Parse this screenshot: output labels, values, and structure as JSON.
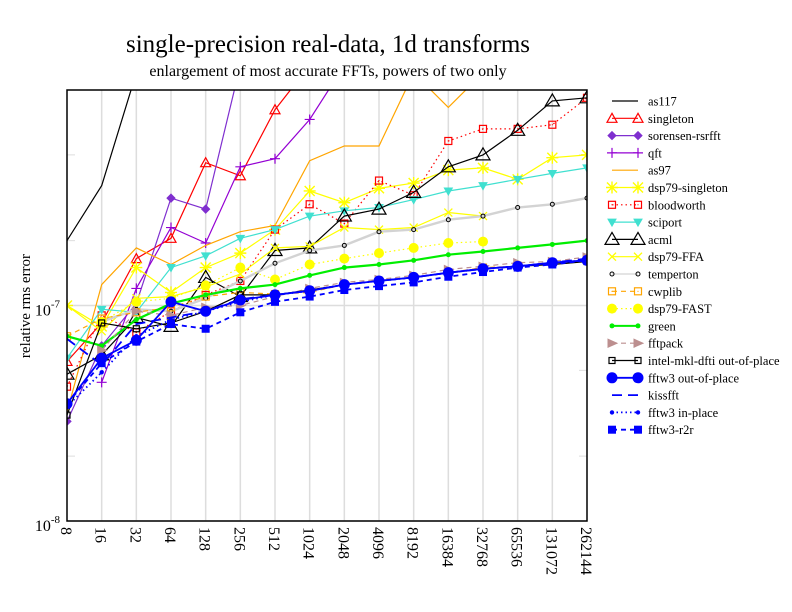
{
  "chart_data": {
    "type": "line",
    "title": "single-precision real-data, 1d transforms",
    "subtitle": "enlargement of most accurate FFTs, powers of two only",
    "xlabel": "",
    "ylabel": "relative rms error",
    "x_scale": "categorical (log2 sizes)",
    "y_scale": "log",
    "ylim": [
      1e-08,
      1e-06
    ],
    "y_ticks": [
      {
        "value": 1e-08,
        "base": "10",
        "exp": "-8"
      },
      {
        "value": 1e-07,
        "base": "10",
        "exp": "-7"
      }
    ],
    "grid": true,
    "legend_position": "right",
    "categories": [
      "8",
      "16",
      "32",
      "64",
      "128",
      "256",
      "512",
      "1024",
      "2048",
      "4096",
      "8192",
      "16384",
      "32768",
      "65536",
      "131072",
      "262144"
    ],
    "series": [
      {
        "name": "as117",
        "color": "#000000",
        "dash": "solid",
        "marker": "none",
        "values": [
          2e-07,
          3.6e-07,
          1.2e-06,
          null,
          null,
          null,
          null,
          null,
          null,
          null,
          null,
          null,
          null,
          null,
          null,
          null
        ]
      },
      {
        "name": "singleton",
        "color": "#ff0000",
        "dash": "solid",
        "marker": "triangle-open",
        "values": [
          5.5e-08,
          8.3e-08,
          1.65e-07,
          2.05e-07,
          4.6e-07,
          4e-07,
          8.1e-07,
          1.3e-06,
          null,
          null,
          null,
          null,
          null,
          null,
          null,
          null
        ]
      },
      {
        "name": "sorensen-rsrfft",
        "color": "#7f2fcf",
        "dash": "solid",
        "marker": "diamond-filled",
        "values": [
          2.9e-08,
          6.5e-08,
          1.02e-07,
          3.15e-07,
          2.8e-07,
          1.3e-06,
          null,
          null,
          null,
          null,
          null,
          null,
          null,
          null,
          null,
          null
        ]
      },
      {
        "name": "qft",
        "color": "#9400d3",
        "dash": "solid",
        "marker": "plus",
        "values": [
          null,
          4.4e-08,
          1.2e-07,
          2.3e-07,
          1.95e-07,
          4.4e-07,
          4.8e-07,
          7.3e-07,
          1.3e-06,
          null,
          null,
          null,
          null,
          null,
          null,
          null
        ]
      },
      {
        "name": "as97",
        "color": "#ffa500",
        "dash": "solid",
        "marker": "none",
        "values": [
          3.2e-08,
          1.25e-07,
          1.85e-07,
          1.55e-07,
          1.9e-07,
          2.2e-07,
          2.35e-07,
          4.7e-07,
          5.5e-07,
          5.5e-07,
          1.2e-06,
          8.3e-07,
          1.2e-06,
          null,
          null,
          null
        ]
      },
      {
        "name": "dsp79-singleton",
        "color": "#ffff00",
        "dash": "solid",
        "marker": "asterisk",
        "values": [
          1e-07,
          8e-08,
          1.5e-07,
          1.15e-07,
          1.5e-07,
          1.75e-07,
          2.25e-07,
          3.4e-07,
          3e-07,
          3.5e-07,
          3.7e-07,
          4.25e-07,
          4.35e-07,
          3.85e-07,
          4.85e-07,
          5e-07
        ]
      },
      {
        "name": "bloodworth",
        "color": "#ff0000",
        "dash": "dotted",
        "marker": "square-open",
        "values": [
          4.2e-08,
          9e-08,
          7.5e-08,
          9.4e-08,
          1.12e-07,
          1.3e-07,
          2.25e-07,
          2.95e-07,
          2.4e-07,
          3.8e-07,
          3.25e-07,
          5.8e-07,
          6.6e-07,
          6.6e-07,
          6.9e-07,
          9.2e-07
        ]
      },
      {
        "name": "sciport",
        "color": "#40e0d0",
        "dash": "solid",
        "marker": "triangle-down",
        "values": [
          5.7e-08,
          9.6e-08,
          9.3e-08,
          1.5e-07,
          1.7e-07,
          2.05e-07,
          2.25e-07,
          2.6e-07,
          2.75e-07,
          2.85e-07,
          3.1e-07,
          3.4e-07,
          3.6e-07,
          3.85e-07,
          4.1e-07,
          4.35e-07
        ]
      },
      {
        "name": "acml",
        "color": "#000000",
        "dash": "solid",
        "marker": "triangle-open-large",
        "values": [
          4.8e-08,
          5.9e-08,
          8.8e-08,
          8e-08,
          1.35e-07,
          1.1e-07,
          1.8e-07,
          1.85e-07,
          2.6e-07,
          2.8e-07,
          3.35e-07,
          4.4e-07,
          5e-07,
          6.5e-07,
          8.9e-07,
          9.2e-07
        ]
      },
      {
        "name": "dsp79-FFA",
        "color": "#ffff00",
        "dash": "solid",
        "marker": "cross",
        "values": [
          1e-07,
          7.6e-08,
          1.08e-07,
          1.1e-07,
          1.22e-07,
          1.4e-07,
          1.85e-07,
          1.88e-07,
          2.3e-07,
          2.25e-07,
          2.3e-07,
          2.7e-07,
          2.6e-07,
          null,
          null,
          null
        ]
      },
      {
        "name": "temperton",
        "color": "#d3d3d3",
        "dash": "solid",
        "marker": "circle-open-small",
        "values": [
          null,
          8.4e-08,
          9.6e-08,
          9.4e-08,
          1.08e-07,
          1.3e-07,
          1.57e-07,
          1.8e-07,
          1.9e-07,
          2.2e-07,
          2.25e-07,
          2.5e-07,
          2.6e-07,
          2.85e-07,
          2.95e-07,
          3.15e-07
        ]
      },
      {
        "name": "cwplib",
        "color": "#ffa500",
        "dash": "dashed",
        "marker": "square-open",
        "values": [
          7.2e-08,
          8.7e-08,
          9.3e-08,
          9.8e-08,
          1.1e-07,
          1.15e-07,
          1.13e-07,
          1.15e-07,
          1.25e-07,
          1.3e-07,
          1.35e-07,
          1.42e-07,
          1.5e-07,
          1.52e-07,
          1.58e-07,
          1.62e-07
        ]
      },
      {
        "name": "dsp79-FAST",
        "color": "#ffff00",
        "dash": "dotted",
        "marker": "circle-filled",
        "values": [
          null,
          8.4e-08,
          1.04e-07,
          1.08e-07,
          1.24e-07,
          1.5e-07,
          1.32e-07,
          1.55e-07,
          1.65e-07,
          1.75e-07,
          1.85e-07,
          1.95e-07,
          1.98e-07,
          null,
          null,
          null
        ]
      },
      {
        "name": "green",
        "color": "#00ee00",
        "dash": "solid",
        "marker": "dot-small",
        "values": [
          7.2e-08,
          6.5e-08,
          8.6e-08,
          1.02e-07,
          1.12e-07,
          1.2e-07,
          1.25e-07,
          1.38e-07,
          1.5e-07,
          1.55e-07,
          1.62e-07,
          1.72e-07,
          1.78e-07,
          1.85e-07,
          1.92e-07,
          2e-07
        ]
      },
      {
        "name": "fftpack",
        "color": "#bc8f8f",
        "dash": "dashed",
        "marker": "triangle-right",
        "values": [
          null,
          6.2e-08,
          9.4e-08,
          9e-08,
          9.8e-08,
          1e-07,
          1.1e-07,
          1.2e-07,
          1.28e-07,
          1.32e-07,
          1.38e-07,
          1.47e-07,
          1.52e-07,
          1.58e-07,
          1.6e-07,
          1.68e-07
        ]
      },
      {
        "name": "intel-mkl-dfti out-of-place",
        "color": "#000000",
        "dash": "solid",
        "marker": "square-open-small",
        "values": [
          3.1e-08,
          8.3e-08,
          7.8e-08,
          8.3e-08,
          9.4e-08,
          1.12e-07,
          1.12e-07,
          1.18e-07,
          1.25e-07,
          1.3e-07,
          1.35e-07,
          1.42e-07,
          1.48e-07,
          1.52e-07,
          1.55e-07,
          1.6e-07
        ]
      },
      {
        "name": "fftw3 out-of-place",
        "color": "#0000ff",
        "dash": "solid",
        "marker": "circle-filled-large",
        "values": [
          3.5e-08,
          5.7e-08,
          6.9e-08,
          1.04e-07,
          9.4e-08,
          1.06e-07,
          1.12e-07,
          1.17e-07,
          1.25e-07,
          1.3e-07,
          1.35e-07,
          1.42e-07,
          1.48e-07,
          1.52e-07,
          1.58e-07,
          1.62e-07
        ]
      },
      {
        "name": "kissfft",
        "color": "#0000ff",
        "dash": "longdash",
        "marker": "none",
        "values": [
          7e-08,
          5.3e-08,
          8.2e-08,
          8.8e-08,
          9.4e-08,
          1.07e-07,
          1.12e-07,
          1.17e-07,
          1.25e-07,
          1.3e-07,
          1.35e-07,
          1.42e-07,
          1.48e-07,
          1.52e-07,
          1.58e-07,
          1.65e-07
        ]
      },
      {
        "name": "fftw3 in-place",
        "color": "#0000ff",
        "dash": "dotted",
        "marker": "dot",
        "values": [
          3.4e-08,
          4.9e-08,
          7.2e-08,
          8.6e-08,
          9.4e-08,
          1.04e-07,
          1.12e-07,
          1.17e-07,
          1.25e-07,
          1.3e-07,
          1.35e-07,
          1.42e-07,
          1.48e-07,
          1.52e-07,
          1.58e-07,
          1.62e-07
        ]
      },
      {
        "name": "fftw3-r2r",
        "color": "#0000ff",
        "dash": "dashed",
        "marker": "square-filled",
        "values": [
          3.5e-08,
          5.4e-08,
          6.8e-08,
          8.2e-08,
          7.8e-08,
          9.3e-08,
          1.04e-07,
          1.1e-07,
          1.18e-07,
          1.23e-07,
          1.28e-07,
          1.36e-07,
          1.43e-07,
          1.5e-07,
          1.55e-07,
          1.62e-07
        ]
      }
    ]
  }
}
